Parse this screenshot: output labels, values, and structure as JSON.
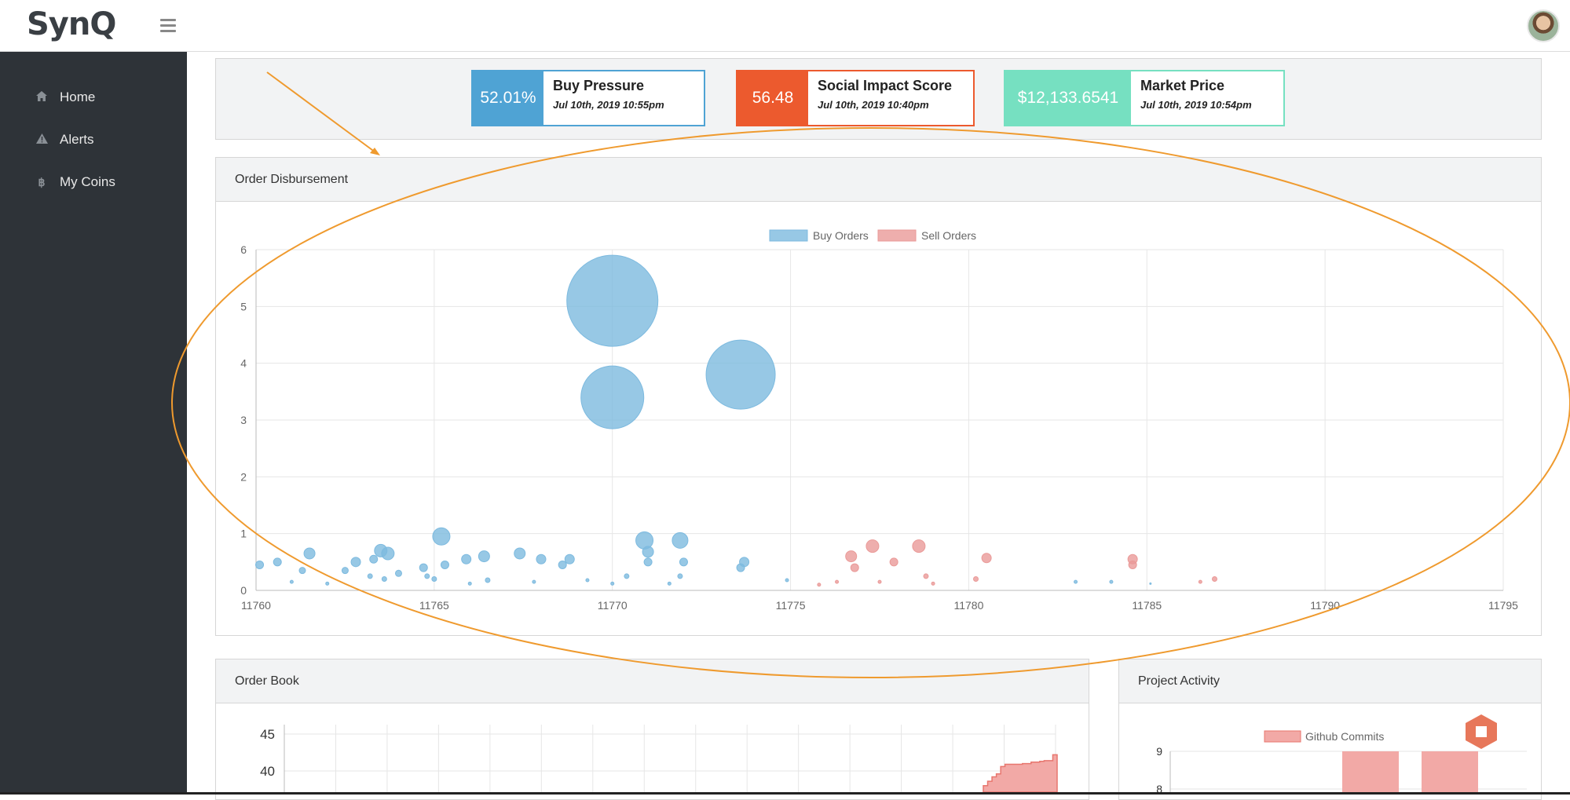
{
  "app": {
    "logo": "SynQ"
  },
  "sidebar": {
    "items": [
      {
        "label": "Home",
        "icon": "home-icon"
      },
      {
        "label": "Alerts",
        "icon": "warning-icon"
      },
      {
        "label": "My Coins",
        "icon": "bitcoin-icon"
      }
    ]
  },
  "stats": [
    {
      "value": "52.01%",
      "title": "Buy Pressure",
      "date": "Jul 10th, 2019 10:55pm",
      "color": "#4fa3d4"
    },
    {
      "value": "56.48",
      "title": "Social Impact Score",
      "date": "Jul 10th, 2019 10:40pm",
      "color": "#ec5a2e"
    },
    {
      "value": "$12,133.6541",
      "title": "Market Price",
      "date": "Jul 10th, 2019 10:54pm",
      "color": "#76e0c1"
    }
  ],
  "panels": {
    "order_disbursement": "Order Disbursement",
    "order_book": "Order Book",
    "project_activity": "Project Activity"
  },
  "chart_data": [
    {
      "type": "scatter",
      "legend": [
        "Buy Orders",
        "Sell Orders"
      ],
      "legend_position": "top",
      "xlim": [
        11760,
        11795
      ],
      "ylim": [
        0,
        6
      ],
      "xticks": [
        "11760",
        "11765",
        "11770",
        "11775",
        "11780",
        "11785",
        "11790",
        "11795"
      ],
      "yticks": [
        "0",
        "1",
        "2",
        "3",
        "4",
        "5",
        "6"
      ],
      "grid": true,
      "series": [
        {
          "name": "Buy Orders",
          "color": "#7dbadf",
          "points": [
            {
              "x": 11770.0,
              "y": 5.1,
              "r": 58
            },
            {
              "x": 11770.0,
              "y": 3.4,
              "r": 40
            },
            {
              "x": 11773.6,
              "y": 3.8,
              "r": 44
            },
            {
              "x": 11765.2,
              "y": 0.95,
              "r": 11
            },
            {
              "x": 11771.9,
              "y": 0.88,
              "r": 10
            },
            {
              "x": 11770.9,
              "y": 0.88,
              "r": 11
            },
            {
              "x": 11763.5,
              "y": 0.7,
              "r": 8
            },
            {
              "x": 11763.7,
              "y": 0.65,
              "r": 8
            },
            {
              "x": 11761.5,
              "y": 0.65,
              "r": 7
            },
            {
              "x": 11767.4,
              "y": 0.65,
              "r": 7
            },
            {
              "x": 11771.0,
              "y": 0.68,
              "r": 7
            },
            {
              "x": 11766.4,
              "y": 0.6,
              "r": 7
            },
            {
              "x": 11768.0,
              "y": 0.55,
              "r": 6
            },
            {
              "x": 11765.9,
              "y": 0.55,
              "r": 6
            },
            {
              "x": 11768.8,
              "y": 0.55,
              "r": 6
            },
            {
              "x": 11762.8,
              "y": 0.5,
              "r": 6
            },
            {
              "x": 11760.1,
              "y": 0.45,
              "r": 5
            },
            {
              "x": 11760.6,
              "y": 0.5,
              "r": 5
            },
            {
              "x": 11773.7,
              "y": 0.5,
              "r": 6
            },
            {
              "x": 11771.0,
              "y": 0.5,
              "r": 5
            },
            {
              "x": 11772.0,
              "y": 0.5,
              "r": 5
            },
            {
              "x": 11763.3,
              "y": 0.55,
              "r": 5
            },
            {
              "x": 11765.3,
              "y": 0.45,
              "r": 5
            },
            {
              "x": 11764.7,
              "y": 0.4,
              "r": 5
            },
            {
              "x": 11768.6,
              "y": 0.45,
              "r": 5
            },
            {
              "x": 11773.6,
              "y": 0.4,
              "r": 5
            },
            {
              "x": 11761.3,
              "y": 0.35,
              "r": 4
            },
            {
              "x": 11762.5,
              "y": 0.35,
              "r": 4
            },
            {
              "x": 11764.0,
              "y": 0.3,
              "r": 4
            },
            {
              "x": 11763.2,
              "y": 0.25,
              "r": 3
            },
            {
              "x": 11764.8,
              "y": 0.25,
              "r": 3
            },
            {
              "x": 11770.4,
              "y": 0.25,
              "r": 3
            },
            {
              "x": 11771.9,
              "y": 0.25,
              "r": 3
            },
            {
              "x": 11763.6,
              "y": 0.2,
              "r": 3
            },
            {
              "x": 11765.0,
              "y": 0.2,
              "r": 3
            },
            {
              "x": 11766.5,
              "y": 0.18,
              "r": 3
            },
            {
              "x": 11767.8,
              "y": 0.15,
              "r": 2
            },
            {
              "x": 11769.3,
              "y": 0.18,
              "r": 2
            },
            {
              "x": 11774.9,
              "y": 0.18,
              "r": 2
            },
            {
              "x": 11761.0,
              "y": 0.15,
              "r": 2
            },
            {
              "x": 11762.0,
              "y": 0.12,
              "r": 2
            },
            {
              "x": 11766.0,
              "y": 0.12,
              "r": 2
            },
            {
              "x": 11770.0,
              "y": 0.12,
              "r": 2
            },
            {
              "x": 11771.6,
              "y": 0.12,
              "r": 2
            },
            {
              "x": 11783.0,
              "y": 0.15,
              "r": 2
            },
            {
              "x": 11784.0,
              "y": 0.15,
              "r": 2
            },
            {
              "x": 11785.1,
              "y": 0.12,
              "r": 1
            }
          ]
        },
        {
          "name": "Sell Orders",
          "color": "#ea9a98",
          "points": [
            {
              "x": 11778.6,
              "y": 0.78,
              "r": 8
            },
            {
              "x": 11777.3,
              "y": 0.78,
              "r": 8
            },
            {
              "x": 11776.7,
              "y": 0.6,
              "r": 7
            },
            {
              "x": 11780.5,
              "y": 0.57,
              "r": 6
            },
            {
              "x": 11784.6,
              "y": 0.55,
              "r": 6
            },
            {
              "x": 11777.9,
              "y": 0.5,
              "r": 5
            },
            {
              "x": 11784.6,
              "y": 0.45,
              "r": 5
            },
            {
              "x": 11776.8,
              "y": 0.4,
              "r": 5
            },
            {
              "x": 11778.8,
              "y": 0.25,
              "r": 3
            },
            {
              "x": 11780.2,
              "y": 0.2,
              "r": 3
            },
            {
              "x": 11786.9,
              "y": 0.2,
              "r": 3
            },
            {
              "x": 11776.3,
              "y": 0.15,
              "r": 2
            },
            {
              "x": 11777.5,
              "y": 0.15,
              "r": 2
            },
            {
              "x": 11779.0,
              "y": 0.12,
              "r": 2
            },
            {
              "x": 11786.5,
              "y": 0.15,
              "r": 2
            },
            {
              "x": 11775.8,
              "y": 0.1,
              "r": 2
            }
          ]
        }
      ]
    },
    {
      "type": "area",
      "yticks": [
        "45",
        "40"
      ],
      "series": [
        {
          "name": "",
          "color": "#e8766e",
          "fill": "#f2a9a6",
          "values": [
            38.0,
            38.6,
            39.2,
            39.6,
            40.6,
            40.9,
            40.9,
            40.9,
            40.9,
            41.0,
            41.0,
            41.2,
            41.2,
            41.3,
            41.4,
            41.4,
            42.2
          ]
        }
      ]
    },
    {
      "type": "bar",
      "legend": [
        "Github Commits"
      ],
      "legend_position": "top",
      "yticks": [
        "9",
        "8"
      ],
      "series": [
        {
          "name": "Github Commits",
          "color": "#f2a9a6",
          "values": [
            9,
            9
          ]
        }
      ]
    }
  ]
}
